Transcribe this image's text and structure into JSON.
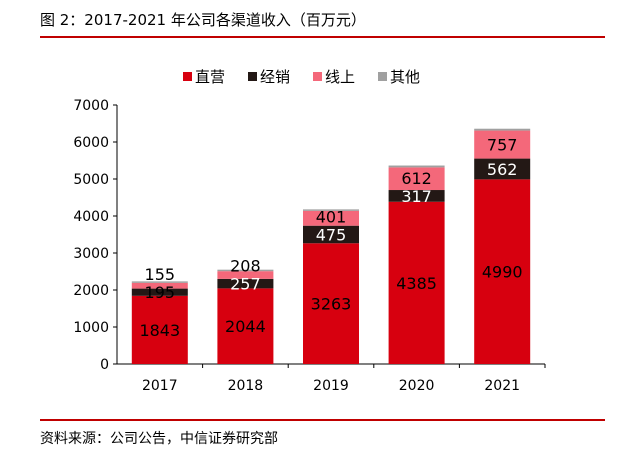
{
  "title": "图 2：2017-2021 年公司各渠道收入（百万元）",
  "source": "资料来源：公司公告，中信证券研究部",
  "chart_data": {
    "type": "bar",
    "stacked": true,
    "categories": [
      "2017",
      "2018",
      "2019",
      "2020",
      "2021"
    ],
    "series": [
      {
        "name": "直营",
        "values": [
          1843,
          2044,
          3263,
          4385,
          4990
        ],
        "color": "#d7000f",
        "label_color": "#000000"
      },
      {
        "name": "经销",
        "values": [
          195,
          257,
          475,
          317,
          562
        ],
        "color": "#231815",
        "label_color": "#ffffff"
      },
      {
        "name": "线上",
        "values": [
          155,
          208,
          401,
          612,
          757
        ],
        "color": "#f4687a",
        "label_color": "#000000"
      },
      {
        "name": "其他",
        "values": [
          40,
          40,
          40,
          50,
          50
        ],
        "color": "#a0a0a0",
        "label_color": null
      }
    ],
    "ylim": [
      0,
      7000
    ],
    "yticks": [
      0,
      1000,
      2000,
      3000,
      4000,
      5000,
      6000,
      7000
    ],
    "grid": false,
    "legend": "top"
  }
}
